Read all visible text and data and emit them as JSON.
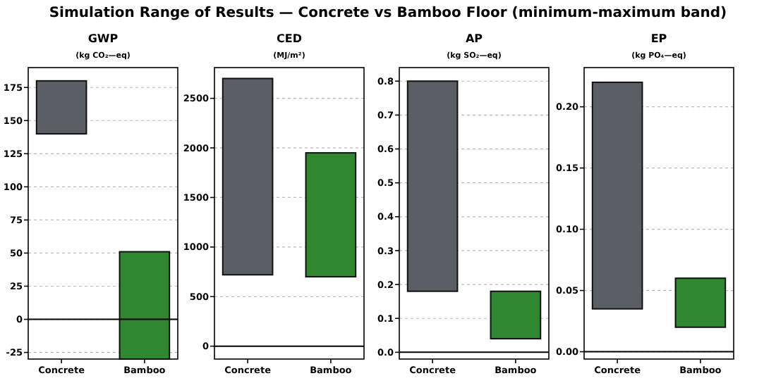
{
  "chart_data": [
    {
      "type": "bar",
      "title": "GWP",
      "subtitle": "(kg CO₂—eq)",
      "annotations": [
        "Simulation Range of Results — Concrete vs Bamboo Floor (minimum-maximum band)"
      ],
      "categories": [
        "Concrete",
        "Bamboo"
      ],
      "values": [
        40,
        81
      ],
      "base": [
        140,
        -30
      ],
      "colors": [
        "#5b5e64",
        "#2f872f"
      ],
      "ylim": [
        -30,
        190
      ],
      "yticks": [
        -25,
        0,
        25,
        50,
        75,
        100,
        125,
        150,
        175
      ],
      "grid": "y",
      "ref_lines": [
        {
          "axis": "y",
          "value": 0,
          "color": "#000000"
        }
      ]
    },
    {
      "type": "bar",
      "title": "CED",
      "subtitle": "(MJ/m²)",
      "categories": [
        "Concrete",
        "Bamboo"
      ],
      "values": [
        1980,
        1250
      ],
      "base": [
        720,
        700
      ],
      "colors": [
        "#5b5e64",
        "#2f872f"
      ],
      "ylim": [
        -130,
        2810
      ],
      "yticks": [
        0,
        500,
        1000,
        1500,
        2000,
        2500
      ],
      "grid": "y",
      "ref_lines": [
        {
          "axis": "y",
          "value": 0,
          "color": "#000000"
        }
      ]
    },
    {
      "type": "bar",
      "title": "AP",
      "subtitle": "(kg SO₂—eq)",
      "categories": [
        "Concrete",
        "Bamboo"
      ],
      "values": [
        0.62,
        0.14
      ],
      "base": [
        0.18,
        0.04
      ],
      "colors": [
        "#5b5e64",
        "#2f872f"
      ],
      "ylim": [
        -0.02,
        0.84
      ],
      "yticks": [
        {
          "value": 0,
          "label": "0.0"
        },
        0.1,
        0.2,
        0.3,
        0.4,
        0.5,
        0.6,
        0.7,
        0.8
      ],
      "grid": "y",
      "ref_lines": [
        {
          "axis": "y",
          "value": 0,
          "color": "#000000"
        }
      ]
    },
    {
      "type": "bar",
      "title": "EP",
      "subtitle": "(kg PO₄—eq)",
      "categories": [
        "Concrete",
        "Bamboo"
      ],
      "values": [
        0.185,
        0.04
      ],
      "base": [
        0.035,
        0.02
      ],
      "colors": [
        "#5b5e64",
        "#2f872f"
      ],
      "ylim": [
        -0.006,
        0.232
      ],
      "yticks": [
        {
          "value": 0,
          "label": "0.00"
        },
        {
          "value": 0.05,
          "label": "0.05"
        },
        {
          "value": 0.1,
          "label": "0.10"
        },
        {
          "value": 0.15,
          "label": "0.15"
        },
        {
          "value": 0.2,
          "label": "0.20"
        }
      ],
      "grid": "y",
      "ref_lines": [
        {
          "axis": "y",
          "value": 0,
          "color": "#000000"
        }
      ]
    }
  ]
}
